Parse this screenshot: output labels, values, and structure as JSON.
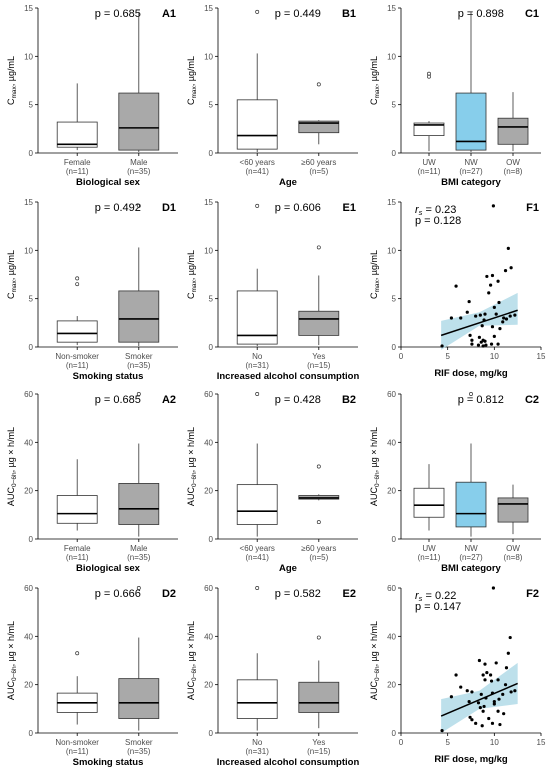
{
  "figure": {
    "box_fill_light": "#ffffff",
    "box_fill_gray": "#a9a9a9",
    "box_fill_blue": "#87ceeb",
    "ribbon_color": "#add8e6",
    "line_color": "#000000"
  },
  "chart_data": [
    {
      "id": "A1",
      "type": "box",
      "pvalue": "p = 0.685",
      "ylabel_main": "C",
      "ylabel_sub": "max",
      "ylabel_unit": ", µg/mL",
      "ylim": [
        0,
        15
      ],
      "yticks": [
        "0",
        "5",
        "10",
        "15"
      ],
      "xlabel": "Biological sex",
      "groups": [
        {
          "label": "Female",
          "n": "(n=11)",
          "fill": "light",
          "stats": {
            "min": 0.3,
            "q1": 0.6,
            "median": 0.9,
            "q3": 3.2,
            "max": 7.2
          },
          "outliers": []
        },
        {
          "label": "Male",
          "n": "(n=35)",
          "fill": "gray",
          "stats": {
            "min": 0.1,
            "q1": 0.3,
            "median": 2.6,
            "q3": 6.2,
            "max": 14.6
          },
          "outliers": []
        }
      ]
    },
    {
      "id": "B1",
      "type": "box",
      "pvalue": "p = 0.449",
      "ylabel_main": "C",
      "ylabel_sub": "max",
      "ylabel_unit": ", µg/mL",
      "ylim": [
        0,
        15
      ],
      "yticks": [
        "0",
        "5",
        "10",
        "15"
      ],
      "xlabel": "Age",
      "groups": [
        {
          "label": "<60 years",
          "n": "(n=41)",
          "fill": "light",
          "stats": {
            "min": 0.1,
            "q1": 0.4,
            "median": 1.8,
            "q3": 5.5,
            "max": 10.3
          },
          "outliers": [
            14.6
          ]
        },
        {
          "label": "≥60 years",
          "n": "(n=5)",
          "fill": "gray",
          "stats": {
            "min": 0.9,
            "q1": 2.1,
            "median": 3.1,
            "q3": 3.3,
            "max": 3.4
          },
          "outliers": [
            7.1
          ]
        }
      ]
    },
    {
      "id": "C1",
      "type": "box",
      "pvalue": "p = 0.898",
      "ylabel_main": "C",
      "ylabel_sub": "max",
      "ylabel_unit": ", µg/mL",
      "ylim": [
        0,
        15
      ],
      "yticks": [
        "0",
        "5",
        "10",
        "15"
      ],
      "xlabel": "BMI category",
      "groups": [
        {
          "label": "UW",
          "n": "(n=11)",
          "fill": "light",
          "stats": {
            "min": 0.2,
            "q1": 1.8,
            "median": 2.9,
            "q3": 3.1,
            "max": 3.3
          },
          "outliers": [
            7.9,
            8.2
          ]
        },
        {
          "label": "NW",
          "n": "(n=27)",
          "fill": "blue",
          "stats": {
            "min": 0.1,
            "q1": 0.3,
            "median": 1.2,
            "q3": 6.2,
            "max": 14.6
          },
          "outliers": []
        },
        {
          "label": "OW",
          "n": "(n=8)",
          "fill": "gray",
          "stats": {
            "min": 0.2,
            "q1": 0.9,
            "median": 2.7,
            "q3": 3.6,
            "max": 6.3
          },
          "outliers": []
        }
      ]
    },
    {
      "id": "D1",
      "type": "box",
      "pvalue": "p = 0.492",
      "ylabel_main": "C",
      "ylabel_sub": "max",
      "ylabel_unit": ", µg/mL",
      "ylim": [
        0,
        15
      ],
      "yticks": [
        "0",
        "5",
        "10",
        "15"
      ],
      "xlabel": "Smoking status",
      "groups": [
        {
          "label": "Non-smoker",
          "n": "(n=11)",
          "fill": "light",
          "stats": {
            "min": 0.2,
            "q1": 0.5,
            "median": 1.4,
            "q3": 2.7,
            "max": 3.2
          },
          "outliers": [
            6.5,
            7.1
          ]
        },
        {
          "label": "Smoker",
          "n": "(n=35)",
          "fill": "gray",
          "stats": {
            "min": 0.1,
            "q1": 0.5,
            "median": 2.9,
            "q3": 5.8,
            "max": 10.3
          },
          "outliers": [
            14.6
          ]
        }
      ]
    },
    {
      "id": "E1",
      "type": "box",
      "pvalue": "p = 0.606",
      "ylabel_main": "C",
      "ylabel_sub": "max",
      "ylabel_unit": ", µg/mL",
      "ylim": [
        0,
        15
      ],
      "yticks": [
        "0",
        "5",
        "10",
        "15"
      ],
      "xlabel": "Increased alcohol consumption",
      "groups": [
        {
          "label": "No",
          "n": "(n=31)",
          "fill": "light",
          "stats": {
            "min": 0.1,
            "q1": 0.3,
            "median": 1.2,
            "q3": 5.8,
            "max": 8.1
          },
          "outliers": [
            14.6
          ]
        },
        {
          "label": "Yes",
          "n": "(n=15)",
          "fill": "gray",
          "stats": {
            "min": 0.2,
            "q1": 1.2,
            "median": 2.9,
            "q3": 3.7,
            "max": 7.4
          },
          "outliers": [
            10.3
          ]
        }
      ]
    },
    {
      "id": "F1",
      "type": "scatter",
      "stat_r": "= 0.23",
      "stat_p": "p = 0.128",
      "ylabel_main": "C",
      "ylabel_sub": "max",
      "ylabel_unit": ", µg/mL",
      "xlabel": "RIF dose, mg/kg",
      "xlim": [
        0,
        15
      ],
      "ylim": [
        0,
        15
      ],
      "xticks": [
        "0",
        "5",
        "10",
        "15"
      ],
      "yticks": [
        "0",
        "5",
        "10",
        "15"
      ],
      "fit": {
        "x0": 4.3,
        "y0": 1.2,
        "x1": 12.5,
        "y1": 3.8
      },
      "ribbon": {
        "lower": [
          -0.3,
          2.2,
          2.3
        ],
        "upper": [
          2.7,
          3.6,
          5.6
        ],
        "x": [
          4.3,
          8.4,
          12.5
        ]
      },
      "points": [
        [
          4.4,
          0.1
        ],
        [
          5.4,
          3.0
        ],
        [
          5.9,
          6.3
        ],
        [
          6.4,
          3.0
        ],
        [
          7.1,
          3.6
        ],
        [
          7.3,
          4.7
        ],
        [
          7.4,
          1.2
        ],
        [
          7.6,
          0.3
        ],
        [
          7.6,
          0.7
        ],
        [
          8.0,
          3.2
        ],
        [
          8.3,
          0.2
        ],
        [
          8.4,
          1.0
        ],
        [
          8.5,
          3.3
        ],
        [
          8.6,
          0.5
        ],
        [
          8.7,
          2.2
        ],
        [
          8.8,
          0.1
        ],
        [
          8.8,
          0.7
        ],
        [
          8.9,
          2.8
        ],
        [
          9.0,
          0.6
        ],
        [
          9.0,
          3.4
        ],
        [
          9.1,
          0.2
        ],
        [
          9.2,
          7.3
        ],
        [
          9.4,
          5.6
        ],
        [
          9.6,
          6.4
        ],
        [
          9.7,
          0.3
        ],
        [
          9.8,
          7.4
        ],
        [
          9.8,
          2.1
        ],
        [
          9.9,
          14.6
        ],
        [
          10.0,
          4.1
        ],
        [
          10.0,
          1.1
        ],
        [
          10.2,
          3.4
        ],
        [
          10.4,
          6.8
        ],
        [
          10.4,
          0.3
        ],
        [
          10.5,
          4.6
        ],
        [
          10.6,
          1.9
        ],
        [
          10.9,
          2.6
        ],
        [
          11.0,
          3.0
        ],
        [
          11.2,
          7.9
        ],
        [
          11.3,
          2.9
        ],
        [
          11.5,
          10.2
        ],
        [
          11.7,
          3.2
        ],
        [
          11.8,
          8.2
        ],
        [
          12.2,
          3.3
        ]
      ]
    },
    {
      "id": "A2",
      "type": "box",
      "pvalue": "p = 0.685",
      "ylabel_main": "AUC",
      "ylabel_sub": "0−6h",
      "ylabel_unit": ", µg × h/mL",
      "ylim": [
        0,
        60
      ],
      "yticks": [
        "0",
        "20",
        "40",
        "60"
      ],
      "xlabel": "Biological sex",
      "groups": [
        {
          "label": "Female",
          "n": "(n=11)",
          "fill": "light",
          "stats": {
            "min": 3.5,
            "q1": 6.5,
            "median": 10.5,
            "q3": 18.0,
            "max": 33.0
          },
          "outliers": []
        },
        {
          "label": "Male",
          "n": "(n=35)",
          "fill": "gray",
          "stats": {
            "min": 1.0,
            "q1": 6.0,
            "median": 12.5,
            "q3": 23.0,
            "max": 39.5
          },
          "outliers": [
            60.0
          ]
        }
      ]
    },
    {
      "id": "B2",
      "type": "box",
      "pvalue": "p = 0.428",
      "ylabel_main": "AUC",
      "ylabel_sub": "0−6h",
      "ylabel_unit": ", µg × h/mL",
      "ylim": [
        0,
        60
      ],
      "yticks": [
        "0",
        "20",
        "40",
        "60"
      ],
      "xlabel": "Age",
      "groups": [
        {
          "label": "<60 years",
          "n": "(n=41)",
          "fill": "light",
          "stats": {
            "min": 1.0,
            "q1": 6.0,
            "median": 11.5,
            "q3": 22.5,
            "max": 39.5
          },
          "outliers": [
            60.0
          ]
        },
        {
          "label": "≥60 years",
          "n": "(n=5)",
          "fill": "gray",
          "stats": {
            "min": 16.0,
            "q1": 16.5,
            "median": 17.0,
            "q3": 18.0,
            "max": 18.5
          },
          "outliers": [
            7.0,
            30.0
          ]
        }
      ]
    },
    {
      "id": "C2",
      "type": "box",
      "pvalue": "p = 0.812",
      "ylabel_main": "AUC",
      "ylabel_sub": "0−6h",
      "ylabel_unit": ", µg × h/mL",
      "ylim": [
        0,
        60
      ],
      "yticks": [
        "0",
        "20",
        "40",
        "60"
      ],
      "xlabel": "BMI category",
      "groups": [
        {
          "label": "UW",
          "n": "(n=11)",
          "fill": "light",
          "stats": {
            "min": 3.5,
            "q1": 9.0,
            "median": 14.0,
            "q3": 21.0,
            "max": 31.0
          },
          "outliers": []
        },
        {
          "label": "NW",
          "n": "(n=27)",
          "fill": "blue",
          "stats": {
            "min": 1.0,
            "q1": 5.0,
            "median": 10.5,
            "q3": 23.5,
            "max": 39.5
          },
          "outliers": [
            60.0
          ]
        },
        {
          "label": "OW",
          "n": "(n=8)",
          "fill": "gray",
          "stats": {
            "min": 2.0,
            "q1": 7.0,
            "median": 14.5,
            "q3": 17.0,
            "max": 22.5
          },
          "outliers": []
        }
      ]
    },
    {
      "id": "D2",
      "type": "box",
      "pvalue": "p = 0.666",
      "ylabel_main": "AUC",
      "ylabel_sub": "0−6h",
      "ylabel_unit": ", µg × h/mL",
      "ylim": [
        0,
        60
      ],
      "yticks": [
        "0",
        "20",
        "40",
        "60"
      ],
      "xlabel": "Smoking status",
      "groups": [
        {
          "label": "Non-smoker",
          "n": "(n=11)",
          "fill": "light",
          "stats": {
            "min": 3.5,
            "q1": 8.5,
            "median": 12.5,
            "q3": 16.5,
            "max": 23.5
          },
          "outliers": [
            33.0
          ]
        },
        {
          "label": "Smoker",
          "n": "(n=35)",
          "fill": "gray",
          "stats": {
            "min": 1.0,
            "q1": 6.0,
            "median": 12.5,
            "q3": 22.5,
            "max": 39.5
          },
          "outliers": [
            60.0
          ]
        }
      ]
    },
    {
      "id": "E2",
      "type": "box",
      "pvalue": "p = 0.582",
      "ylabel_main": "AUC",
      "ylabel_sub": "0−6h",
      "ylabel_unit": ", µg × h/mL",
      "ylim": [
        0,
        60
      ],
      "yticks": [
        "0",
        "20",
        "40",
        "60"
      ],
      "xlabel": "Increased alcohol consumption",
      "groups": [
        {
          "label": "No",
          "n": "(n=31)",
          "fill": "light",
          "stats": {
            "min": 1.0,
            "q1": 6.0,
            "median": 12.5,
            "q3": 22.0,
            "max": 33.0
          },
          "outliers": [
            60.0
          ]
        },
        {
          "label": "Yes",
          "n": "(n=15)",
          "fill": "gray",
          "stats": {
            "min": 2.0,
            "q1": 8.5,
            "median": 12.5,
            "q3": 21.0,
            "max": 30.0
          },
          "outliers": [
            39.5
          ]
        }
      ]
    },
    {
      "id": "F2",
      "type": "scatter",
      "stat_r": "= 0.22",
      "stat_p": "p = 0.147",
      "ylabel_main": "AUC",
      "ylabel_sub": "0−6h",
      "ylabel_unit": ", µg × h/mL",
      "xlabel": "RIF dose, mg/kg",
      "xlim": [
        0,
        15
      ],
      "ylim": [
        0,
        60
      ],
      "xticks": [
        "0",
        "5",
        "10",
        "15"
      ],
      "yticks": [
        "0",
        "20",
        "40",
        "60"
      ],
      "fit": {
        "x0": 4.3,
        "y0": 7.0,
        "x1": 12.5,
        "y1": 20.5
      },
      "ribbon": {
        "lower": [
          0.0,
          10.0,
          12.0
        ],
        "upper": [
          14.0,
          17.5,
          29.0
        ],
        "x": [
          4.3,
          8.4,
          12.5
        ]
      },
      "points": [
        [
          4.4,
          1.0
        ],
        [
          5.4,
          15.0
        ],
        [
          5.9,
          24.0
        ],
        [
          6.4,
          19.0
        ],
        [
          7.1,
          17.5
        ],
        [
          7.3,
          13.0
        ],
        [
          7.4,
          6.5
        ],
        [
          7.6,
          5.5
        ],
        [
          7.6,
          17.0
        ],
        [
          8.0,
          4.0
        ],
        [
          8.3,
          12.5
        ],
        [
          8.4,
          30.0
        ],
        [
          8.5,
          10.5
        ],
        [
          8.6,
          16.0
        ],
        [
          8.7,
          3.0
        ],
        [
          8.8,
          9.0
        ],
        [
          8.8,
          24.0
        ],
        [
          8.9,
          11.0
        ],
        [
          9.0,
          28.5
        ],
        [
          9.0,
          22.0
        ],
        [
          9.1,
          14.5
        ],
        [
          9.2,
          25.0
        ],
        [
          9.4,
          6.0
        ],
        [
          9.6,
          24.0
        ],
        [
          9.7,
          21.5
        ],
        [
          9.8,
          16.5
        ],
        [
          9.8,
          4.0
        ],
        [
          9.9,
          60.0
        ],
        [
          10.0,
          12.0
        ],
        [
          10.0,
          13.0
        ],
        [
          10.2,
          29.0
        ],
        [
          10.4,
          9.0
        ],
        [
          10.4,
          22.0
        ],
        [
          10.5,
          14.0
        ],
        [
          10.6,
          3.5
        ],
        [
          10.9,
          16.0
        ],
        [
          11.0,
          8.0
        ],
        [
          11.2,
          20.0
        ],
        [
          11.3,
          27.0
        ],
        [
          11.5,
          33.0
        ],
        [
          11.7,
          39.5
        ],
        [
          11.8,
          17.0
        ],
        [
          12.2,
          17.5
        ]
      ]
    }
  ]
}
